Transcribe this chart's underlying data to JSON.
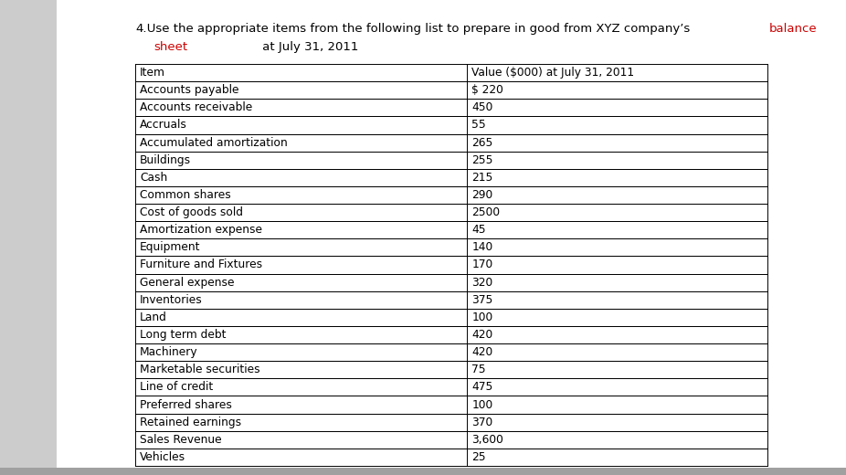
{
  "title_prefix": "4.",
  "title_text1": "   Use the appropriate items from the following list to prepare in good from XYZ company’s ",
  "title_red1": "balance",
  "title_line2_red": "sheet",
  "title_line2_black": " at July 31, 2011",
  "col1_header": "Item",
  "col2_header": "Value ($000) at July 31, 2011",
  "rows": [
    [
      "Accounts payable",
      "$ 220"
    ],
    [
      "Accounts receivable",
      "450"
    ],
    [
      "Accruals",
      "55"
    ],
    [
      "Accumulated amortization",
      "265"
    ],
    [
      "Buildings",
      "255"
    ],
    [
      "Cash",
      "215"
    ],
    [
      "Common shares",
      "290"
    ],
    [
      "Cost of goods sold",
      "2500"
    ],
    [
      "Amortization expense",
      "45"
    ],
    [
      "Equipment",
      "140"
    ],
    [
      "Furniture and Fixtures",
      "170"
    ],
    [
      "General expense",
      "320"
    ],
    [
      "Inventories",
      "375"
    ],
    [
      "Land",
      "100"
    ],
    [
      "Long term debt",
      "420"
    ],
    [
      "Machinery",
      "420"
    ],
    [
      "Marketable securities",
      "75"
    ],
    [
      "Line of credit",
      "475"
    ],
    [
      "Preferred shares",
      "100"
    ],
    [
      "Retained earnings",
      "370"
    ],
    [
      "Sales Revenue",
      "3,600"
    ],
    [
      "Vehicles",
      "25"
    ]
  ],
  "text_color": "#000000",
  "red_color": "#cc0000",
  "font_size_title": 9.5,
  "font_size_table": 8.8,
  "page_bg": "#e8e8e8",
  "table_bg": "#ffffff",
  "left_panel_bg": "#d0d0d0"
}
